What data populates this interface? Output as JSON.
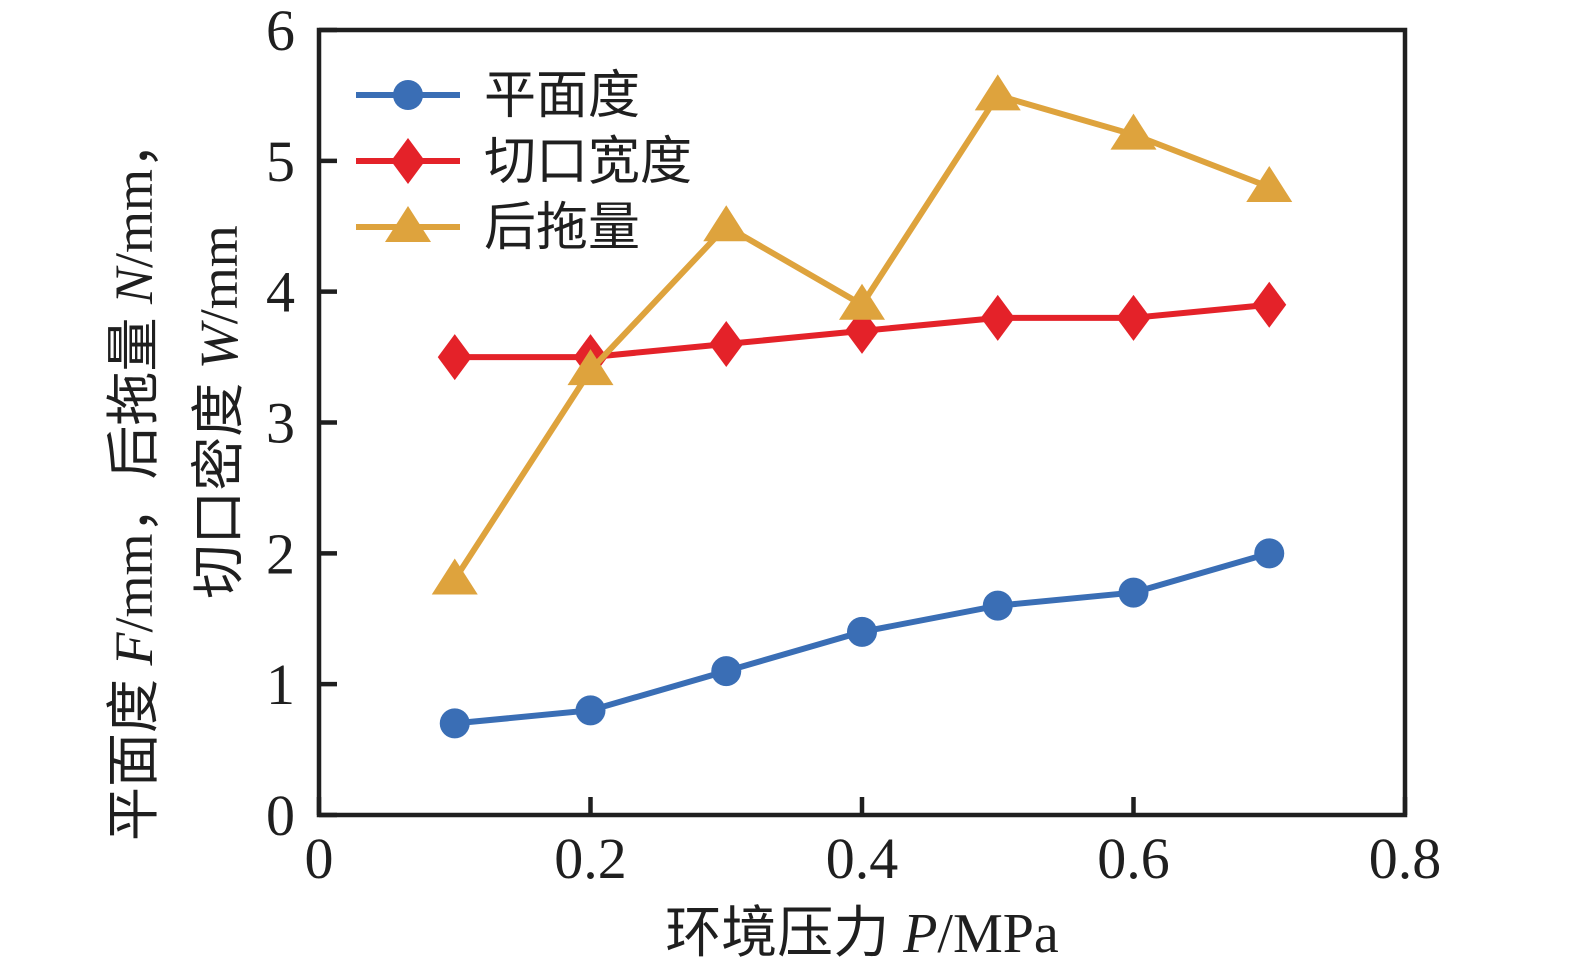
{
  "figure": {
    "background": "#ffffff",
    "frame_color": "#1f1f1f",
    "text_color": "#1f1f1f"
  },
  "chart_data": {
    "type": "line",
    "x": [
      0.1,
      0.2,
      0.3,
      0.4,
      0.5,
      0.6,
      0.7
    ],
    "series": [
      {
        "name": "平面度",
        "marker": "circle",
        "color": "#3A6EB5",
        "values": [
          0.7,
          0.8,
          1.1,
          1.4,
          1.6,
          1.7,
          2.0
        ]
      },
      {
        "name": "切口宽度",
        "marker": "diamond",
        "color": "#E42229",
        "values": [
          3.5,
          3.5,
          3.6,
          3.7,
          3.8,
          3.8,
          3.9
        ]
      },
      {
        "name": "后拖量",
        "marker": "triangle",
        "color": "#DEA33D",
        "values": [
          1.8,
          3.4,
          4.5,
          3.9,
          5.5,
          5.2,
          4.8
        ]
      }
    ],
    "xlim": [
      0,
      0.8
    ],
    "ylim": [
      0,
      6
    ],
    "x_ticks": [
      0,
      0.2,
      0.4,
      0.6,
      0.8
    ],
    "x_tick_labels": [
      "0",
      "0.2",
      "0.4",
      "0.6",
      "0.8"
    ],
    "y_ticks": [
      0,
      1,
      2,
      3,
      4,
      5,
      6
    ],
    "y_tick_labels": [
      "0",
      "1",
      "2",
      "3",
      "4",
      "5",
      "6"
    ],
    "xlabel_segments": [
      {
        "text": "环境压力 ",
        "italic": false
      },
      {
        "text": "P",
        "italic": true
      },
      {
        "text": "/MPa",
        "italic": false
      }
    ],
    "ylabel_lines": [
      [
        {
          "text": "平面度 ",
          "italic": false
        },
        {
          "text": "F",
          "italic": true
        },
        {
          "text": "/mm，后拖量 ",
          "italic": false
        },
        {
          "text": "N",
          "italic": true
        },
        {
          "text": "/mm，",
          "italic": false
        }
      ],
      [
        {
          "text": "切口密度 ",
          "italic": false
        },
        {
          "text": "W",
          "italic": true
        },
        {
          "text": "/mm",
          "italic": false
        }
      ]
    ],
    "legend": {
      "position": "top-left-inside",
      "entries": [
        "平面度",
        "切口宽度",
        "后拖量"
      ]
    },
    "grid": false
  }
}
